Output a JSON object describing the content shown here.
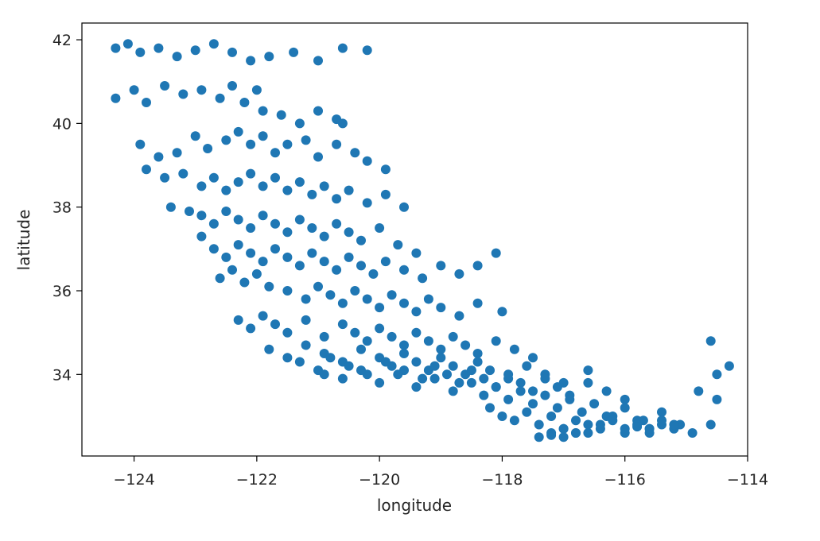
{
  "chart_data": {
    "type": "scatter",
    "xlabel": "longitude",
    "ylabel": "latitude",
    "xlim": [
      -124.85,
      -114.0
    ],
    "ylim": [
      32.05,
      42.4
    ],
    "x_ticks": [
      -124,
      -122,
      -120,
      -118,
      -116,
      -114
    ],
    "x_tick_labels": [
      "−124",
      "−122",
      "−120",
      "−118",
      "−116",
      "−114"
    ],
    "y_ticks": [
      34,
      36,
      38,
      40,
      42
    ],
    "y_tick_labels": [
      "34",
      "36",
      "38",
      "40",
      "42"
    ],
    "grid": false,
    "marker_color": "#1f77b4",
    "series": [
      {
        "x": [
          -124.3,
          -124.1,
          -123.9,
          -123.6,
          -123.3,
          -123.0,
          -122.7,
          -122.4,
          -122.1,
          -121.8,
          -121.4,
          -121.0,
          -120.6,
          -120.2,
          -124.3,
          -124.0,
          -123.8,
          -123.5,
          -123.2,
          -122.9,
          -122.6,
          -122.4,
          -122.2,
          -122.0,
          -121.9,
          -121.6,
          -121.3,
          -121.0,
          -120.7,
          -120.6,
          -123.9,
          -123.6,
          -123.3,
          -123.0,
          -122.8,
          -122.5,
          -122.3,
          -122.1,
          -121.9,
          -121.7,
          -121.5,
          -121.2,
          -121.0,
          -120.7,
          -120.4,
          -120.2,
          -119.9,
          -123.8,
          -123.5,
          -123.2,
          -122.9,
          -122.7,
          -122.5,
          -122.3,
          -122.1,
          -121.9,
          -121.7,
          -121.5,
          -121.3,
          -121.1,
          -120.9,
          -120.7,
          -120.5,
          -120.2,
          -119.9,
          -119.6,
          -123.4,
          -123.1,
          -122.9,
          -122.7,
          -122.5,
          -122.3,
          -122.1,
          -121.9,
          -121.7,
          -121.5,
          -121.3,
          -121.1,
          -120.9,
          -120.7,
          -120.5,
          -120.3,
          -120.0,
          -119.7,
          -119.4,
          -122.9,
          -122.7,
          -122.5,
          -122.3,
          -122.1,
          -121.9,
          -121.7,
          -121.5,
          -121.3,
          -121.1,
          -120.9,
          -120.7,
          -120.5,
          -120.3,
          -120.1,
          -119.9,
          -119.6,
          -119.3,
          -119.0,
          -118.7,
          -118.4,
          -118.1,
          -122.6,
          -122.4,
          -122.2,
          -122.0,
          -121.8,
          -121.5,
          -121.2,
          -121.0,
          -120.8,
          -120.6,
          -120.4,
          -120.2,
          -120.0,
          -119.8,
          -119.6,
          -119.4,
          -119.2,
          -119.0,
          -118.7,
          -118.4,
          -118.0,
          -122.3,
          -122.1,
          -121.9,
          -121.7,
          -121.5,
          -121.2,
          -120.9,
          -120.6,
          -120.4,
          -120.2,
          -120.0,
          -119.8,
          -119.6,
          -119.4,
          -119.2,
          -119.0,
          -118.8,
          -118.6,
          -118.4,
          -118.1,
          -117.8,
          -117.5,
          -121.8,
          -121.5,
          -121.2,
          -120.9,
          -120.6,
          -120.3,
          -120.0,
          -119.8,
          -119.6,
          -119.4,
          -119.2,
          -119.0,
          -118.8,
          -118.6,
          -118.4,
          -118.2,
          -117.9,
          -117.6,
          -117.3,
          -117.0,
          -116.6,
          -121.3,
          -121.0,
          -120.8,
          -120.5,
          -120.2,
          -119.9,
          -119.6,
          -119.3,
          -119.1,
          -118.9,
          -118.7,
          -118.5,
          -118.3,
          -118.1,
          -117.9,
          -117.7,
          -117.5,
          -117.3,
          -117.1,
          -116.9,
          -116.6,
          -116.3,
          -116.0,
          -120.9,
          -120.6,
          -120.3,
          -120.0,
          -119.7,
          -119.4,
          -119.1,
          -118.8,
          -118.5,
          -118.3,
          -118.1,
          -117.9,
          -117.7,
          -117.5,
          -117.3,
          -117.1,
          -116.9,
          -116.7,
          -116.5,
          -116.3,
          -116.0,
          -115.7,
          -115.4,
          -115.1,
          -114.8,
          -114.5,
          -118.2,
          -118.0,
          -117.8,
          -117.6,
          -117.4,
          -117.2,
          -117.0,
          -116.8,
          -116.6,
          -116.4,
          -116.2,
          -116.0,
          -115.8,
          -115.6,
          -115.4,
          -115.2,
          -114.9,
          -114.6,
          -117.4,
          -117.2,
          -117.0,
          -116.8,
          -116.6,
          -116.4,
          -116.2,
          -116.0,
          -115.8,
          -115.6,
          -115.4,
          -115.2,
          -117.2,
          -117.0,
          -116.8,
          -115.8,
          -115.6,
          -114.6,
          -114.5,
          -114.3
        ],
        "y": [
          41.8,
          41.9,
          41.7,
          41.8,
          41.6,
          41.75,
          41.9,
          41.7,
          41.5,
          41.6,
          41.7,
          41.5,
          41.8,
          41.75,
          40.6,
          40.8,
          40.5,
          40.9,
          40.7,
          40.8,
          40.6,
          40.9,
          40.5,
          40.8,
          40.3,
          40.2,
          40.0,
          40.3,
          40.1,
          40.0,
          39.5,
          39.2,
          39.3,
          39.7,
          39.4,
          39.6,
          39.8,
          39.5,
          39.7,
          39.3,
          39.5,
          39.6,
          39.2,
          39.5,
          39.3,
          39.1,
          38.9,
          38.9,
          38.7,
          38.8,
          38.5,
          38.7,
          38.4,
          38.6,
          38.8,
          38.5,
          38.7,
          38.4,
          38.6,
          38.3,
          38.5,
          38.2,
          38.4,
          38.1,
          38.3,
          38.0,
          38.0,
          37.9,
          37.8,
          37.6,
          37.9,
          37.7,
          37.5,
          37.8,
          37.6,
          37.4,
          37.7,
          37.5,
          37.3,
          37.6,
          37.4,
          37.2,
          37.5,
          37.1,
          36.9,
          37.3,
          37.0,
          36.8,
          37.1,
          36.9,
          36.7,
          37.0,
          36.8,
          36.6,
          36.9,
          36.7,
          36.5,
          36.8,
          36.6,
          36.4,
          36.7,
          36.5,
          36.3,
          36.6,
          36.4,
          36.6,
          36.9,
          36.3,
          36.5,
          36.2,
          36.4,
          36.1,
          36.0,
          35.8,
          36.1,
          35.9,
          35.7,
          36.0,
          35.8,
          35.6,
          35.9,
          35.7,
          35.5,
          35.8,
          35.6,
          35.4,
          35.7,
          35.5,
          35.3,
          35.1,
          35.4,
          35.2,
          35.0,
          35.3,
          34.9,
          35.2,
          35.0,
          34.8,
          35.1,
          34.9,
          34.7,
          35.0,
          34.8,
          34.6,
          34.9,
          34.7,
          34.5,
          34.8,
          34.6,
          34.4,
          34.6,
          34.4,
          34.7,
          34.5,
          34.3,
          34.6,
          34.4,
          34.2,
          34.5,
          34.3,
          34.1,
          34.4,
          34.2,
          34.0,
          34.3,
          34.1,
          33.9,
          34.2,
          34.0,
          33.8,
          34.1,
          34.3,
          34.1,
          34.4,
          34.2,
          34.0,
          34.3,
          34.1,
          33.9,
          34.2,
          34.0,
          33.8,
          34.1,
          33.9,
          33.7,
          34.0,
          33.8,
          33.6,
          33.9,
          33.7,
          33.5,
          33.8,
          33.6,
          33.4,
          34.0,
          33.9,
          34.1,
          33.8,
          34.0,
          33.7,
          33.9,
          33.6,
          33.8,
          33.5,
          33.7,
          33.4,
          33.6,
          33.3,
          33.5,
          33.2,
          33.4,
          33.1,
          33.3,
          33.0,
          33.2,
          32.9,
          33.1,
          32.8,
          33.6,
          33.4,
          33.2,
          33.0,
          32.9,
          33.1,
          32.8,
          33.0,
          32.7,
          32.9,
          32.6,
          32.8,
          33.0,
          32.7,
          32.9,
          32.6,
          32.8,
          32.7,
          32.6,
          32.8,
          32.5,
          32.6,
          32.7,
          32.6,
          32.8,
          32.7,
          32.9,
          32.6,
          32.8,
          32.7,
          32.9,
          32.8,
          32.55,
          32.5,
          32.6,
          32.75,
          32.7,
          34.8,
          34.0,
          34.2
        ]
      }
    ]
  }
}
